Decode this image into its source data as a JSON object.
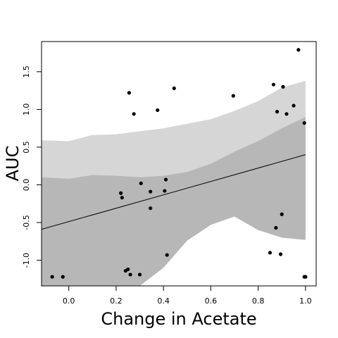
{
  "chart_data": {
    "type": "scatter",
    "title": "",
    "xlabel": "Change in Acetate",
    "ylabel": "AUC",
    "xlim": [
      -0.115,
      1.045
    ],
    "ylim": [
      -1.34,
      1.9
    ],
    "xticks": [
      0.0,
      0.2,
      0.4,
      0.6,
      0.8,
      1.0
    ],
    "xtick_labels": [
      "0.0",
      "0.2",
      "0.4",
      "0.6",
      "0.8",
      "1.0"
    ],
    "yticks": [
      -1.0,
      -0.5,
      0.0,
      0.5,
      1.0,
      1.5
    ],
    "ytick_labels": [
      "-1.0",
      "-0.5",
      "0.0",
      "0.5",
      "1.0",
      "1.5"
    ],
    "grid": false,
    "colors": {
      "outer_band": "#d6d6d6",
      "inner_band": "#b7b7b7",
      "points": "#000000",
      "line": "#000000"
    },
    "regression_line": {
      "x": [
        -0.115,
        1.0
      ],
      "y": [
        -0.59,
        0.4
      ]
    },
    "outer_band": {
      "x": [
        -0.115,
        0.0,
        0.1,
        0.2,
        0.3,
        0.4,
        0.5,
        0.6,
        0.7,
        0.8,
        0.9,
        1.0
      ],
      "upper": [
        0.59,
        0.58,
        0.66,
        0.67,
        0.71,
        0.75,
        0.81,
        0.87,
        0.98,
        1.11,
        1.29,
        1.38
      ],
      "lower": [
        -1.34,
        -1.16,
        -0.98,
        -0.86,
        -0.7,
        -0.55,
        -0.36,
        -0.22,
        -0.16,
        -0.1,
        -0.08,
        -0.07
      ]
    },
    "inner_band": {
      "x": [
        -0.115,
        0.0,
        0.1,
        0.2,
        0.3,
        0.4,
        0.5,
        0.6,
        0.7,
        0.8,
        0.9,
        1.0
      ],
      "upper": [
        0.1,
        0.08,
        0.13,
        0.12,
        0.1,
        0.12,
        0.17,
        0.28,
        0.44,
        0.58,
        0.75,
        0.9
      ],
      "lower": [
        -1.34,
        -1.34,
        -1.34,
        -1.34,
        -1.34,
        -1.1,
        -0.74,
        -0.53,
        -0.42,
        -0.6,
        -0.7,
        -0.73
      ]
    },
    "points": [
      {
        "x": -0.07,
        "y": -1.22
      },
      {
        "x": -0.025,
        "y": -1.22
      },
      {
        "x": 0.22,
        "y": -0.11
      },
      {
        "x": 0.225,
        "y": -0.17
      },
      {
        "x": 0.24,
        "y": -1.14
      },
      {
        "x": 0.25,
        "y": -1.12
      },
      {
        "x": 0.26,
        "y": -1.19
      },
      {
        "x": 0.255,
        "y": 1.22
      },
      {
        "x": 0.275,
        "y": 0.94
      },
      {
        "x": 0.3,
        "y": -1.19
      },
      {
        "x": 0.305,
        "y": 0.02
      },
      {
        "x": 0.345,
        "y": -0.09
      },
      {
        "x": 0.345,
        "y": -0.31
      },
      {
        "x": 0.375,
        "y": 0.99
      },
      {
        "x": 0.405,
        "y": -0.08
      },
      {
        "x": 0.41,
        "y": 0.07
      },
      {
        "x": 0.415,
        "y": -0.93
      },
      {
        "x": 0.445,
        "y": 1.28
      },
      {
        "x": 0.695,
        "y": 1.18
      },
      {
        "x": 0.85,
        "y": -0.9
      },
      {
        "x": 0.865,
        "y": 1.33
      },
      {
        "x": 0.875,
        "y": -0.57
      },
      {
        "x": 0.88,
        "y": 0.97
      },
      {
        "x": 0.895,
        "y": -0.92
      },
      {
        "x": 0.9,
        "y": -0.39
      },
      {
        "x": 0.905,
        "y": 1.3
      },
      {
        "x": 0.92,
        "y": 0.94
      },
      {
        "x": 0.95,
        "y": 1.05
      },
      {
        "x": 0.97,
        "y": 1.79
      },
      {
        "x": 0.995,
        "y": 0.82
      },
      {
        "x": 0.995,
        "y": -1.22
      },
      {
        "x": 1.0,
        "y": -1.22
      }
    ]
  }
}
